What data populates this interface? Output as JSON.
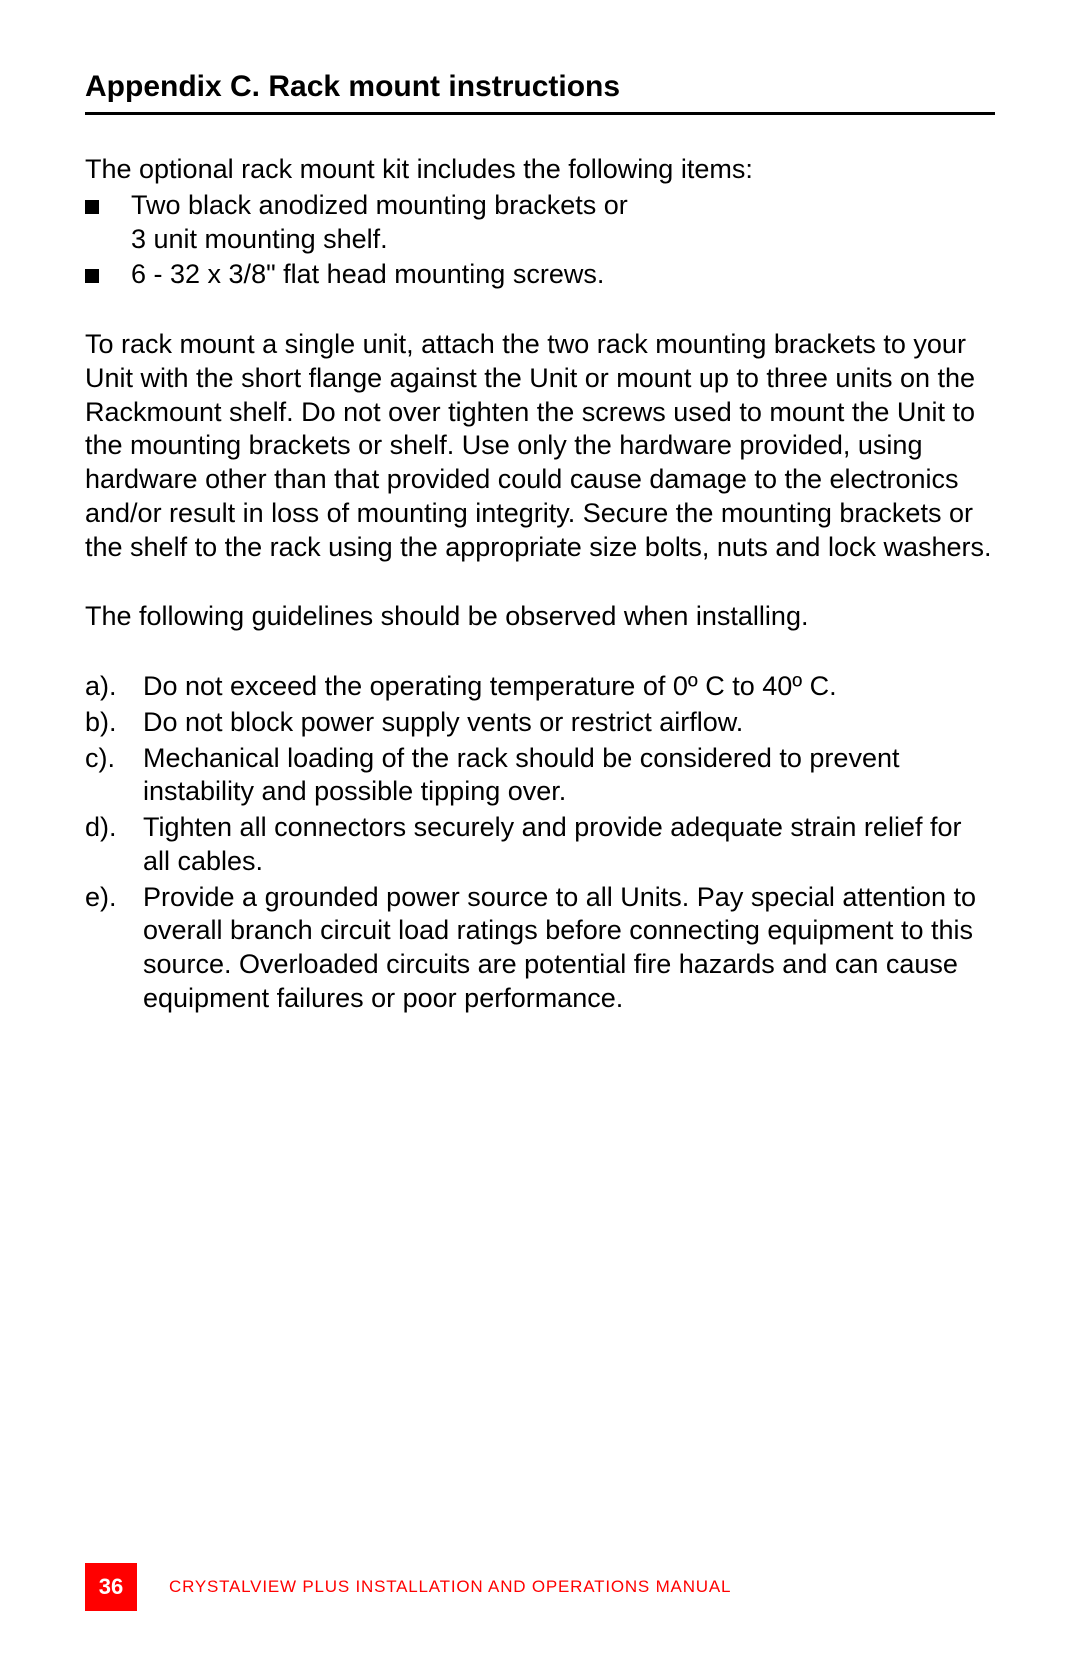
{
  "title": "Appendix C. Rack mount instructions",
  "intro_text": "The optional rack mount kit includes the following items:",
  "bullets": {
    "item1_line1": "Two black anodized mounting brackets or",
    "item1_line2": "3 unit mounting shelf.",
    "item2": "6 - 32 x 3/8\" flat head mounting screws."
  },
  "paragraph1": "To rack mount a single unit, attach the two rack mounting brackets to your Unit with the short flange against the Unit or mount up to three units on the Rackmount shelf. Do not over tighten the screws used to mount the Unit to the mounting brackets or shelf.  Use only the hardware provided, using hardware other than that provided could cause damage to the electronics and/or result in loss of mounting integrity.  Secure the mounting brackets or the shelf to the rack using the appropriate size bolts, nuts and lock washers.",
  "paragraph2": "The following guidelines should be observed when installing.",
  "lettered": {
    "a_marker": "a).",
    "a_text": "Do not exceed the operating temperature of 0º C to 40º C.",
    "b_marker": "b).",
    "b_text": "Do not block power supply vents or restrict airflow.",
    "c_marker": "c).",
    "c_text": "Mechanical loading of the rack should be considered to prevent instability and possible tipping over.",
    "d_marker": "d).",
    "d_text": "Tighten all connectors securely and provide adequate strain relief for all cables.",
    "e_marker": "e).",
    "e_text": "Provide a grounded power source to all Units.  Pay special attention to overall branch circuit load ratings before connecting equipment to this source.  Overloaded circuits are potential fire hazards and can cause equipment failures or poor performance."
  },
  "footer": {
    "page_number": "36",
    "footer_label": "CRYSTALVIEW PLUS INSTALLATION AND OPERATIONS MANUAL"
  },
  "colors": {
    "text": "#000000",
    "accent": "#ff0000",
    "background": "#ffffff"
  },
  "typography": {
    "title_fontsize": 30,
    "body_fontsize": 27,
    "footer_fontsize": 17,
    "pagenum_fontsize": 22,
    "font_family": "Arial"
  }
}
